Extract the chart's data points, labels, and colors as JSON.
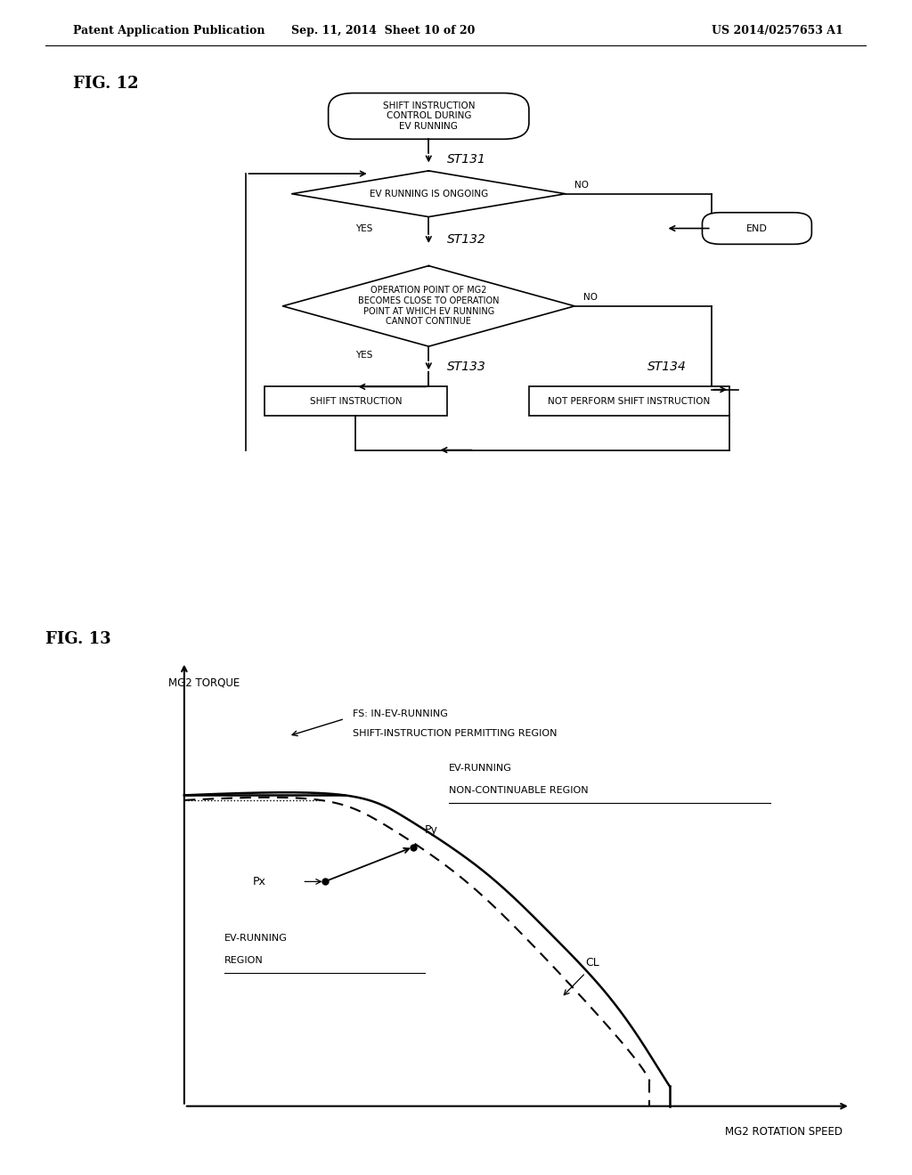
{
  "fig_width": 10.24,
  "fig_height": 13.2,
  "bg_color": "#ffffff",
  "header_text": "Patent Application Publication",
  "header_date": "Sep. 11, 2014  Sheet 10 of 20",
  "header_patent": "US 2014/0257653 A1",
  "fig12_label": "FIG. 12",
  "fig13_label": "FIG. 13",
  "flowchart": {
    "start_box": "SHIFT INSTRUCTION\nCONTROL DURING\nEV RUNNING",
    "st131_label": "ST131",
    "diamond1_text": "EV RUNNING IS ONGOING",
    "no1_label": "NO",
    "yes1_label": "YES",
    "st132_label": "ST132",
    "end_box": "END",
    "diamond2_text": "OPERATION POINT OF MG2\nBECOMES CLOSE TO OPERATION\nPOINT AT WHICH EV RUNNING\nCANNOT CONTINUE",
    "no2_label": "NO",
    "yes2_label": "YES",
    "st133_label": "ST133",
    "st134_label": "ST134",
    "box_left": "SHIFT INSTRUCTION",
    "box_right": "NOT PERFORM SHIFT INSTRUCTION"
  },
  "graph": {
    "xlabel": "MG2 ROTATION SPEED",
    "ylabel": "MG2 TORQUE",
    "label_fs_line1": "FS: IN-EV-RUNNING",
    "label_fs_line2": "SHIFT-INSTRUCTION PERMITTING REGION",
    "label_ev_non_cont_line1": "EV-RUNNING",
    "label_ev_non_cont_line2": "NON-CONTINUABLE REGION",
    "label_ev_run_line1": "EV-RUNNING",
    "label_ev_run_line2": "REGION",
    "label_cl": "CL",
    "label_px": "Px",
    "label_py": "Py"
  }
}
